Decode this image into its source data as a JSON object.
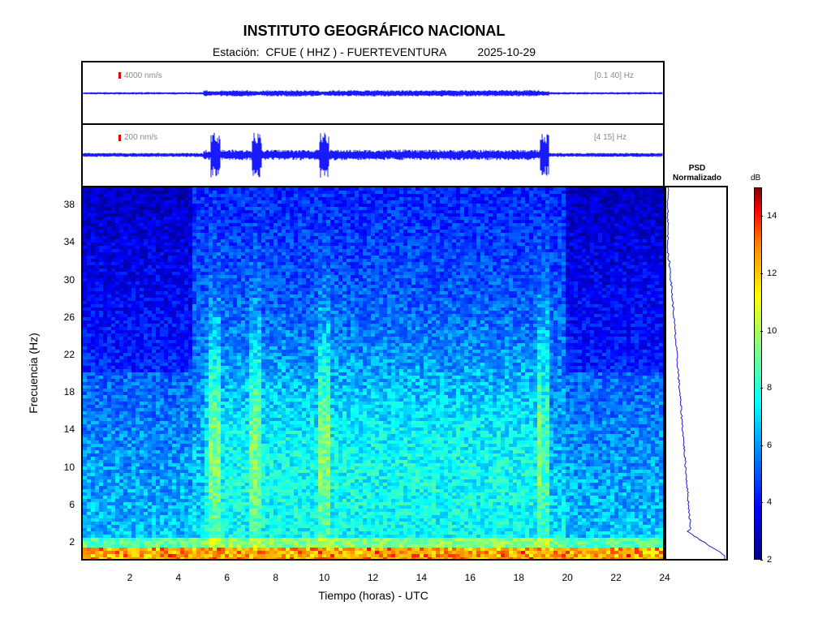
{
  "header": {
    "title": "INSTITUTO GEOGRÁFICO NACIONAL",
    "subtitle": "Estación:  CFUE ( HHZ ) - FUERTEVENTURA          2025-10-29"
  },
  "trace_top": {
    "scale_label": "4000 nm/s",
    "band_label": "[0.1 40] Hz"
  },
  "trace_bottom": {
    "scale_label": "200 nm/s",
    "band_label": "[4 15] Hz"
  },
  "psd": {
    "title_line1": "PSD",
    "title_line2": "Normalizado"
  },
  "colorbar": {
    "unit": "dB",
    "ticks": [
      "2",
      "4",
      "6",
      "8",
      "10",
      "12",
      "14"
    ],
    "colormap": [
      "#00008f",
      "#0000ff",
      "#00ffff",
      "#ffff00",
      "#ff0000",
      "#800000"
    ]
  },
  "colors": {
    "trace": "#1a1aff",
    "scale_marker": "#e00000",
    "psd_line": "#1a1acc"
  },
  "chart_data": {
    "type": "heatmap",
    "title": "INSTITUTO GEOGRÁFICO NACIONAL",
    "xlabel": "Tiempo (horas) - UTC",
    "ylabel": "Frecuencia  (Hz)",
    "xlim": [
      0,
      24
    ],
    "ylim": [
      0,
      40
    ],
    "x_ticks": [
      "2",
      "4",
      "6",
      "8",
      "10",
      "12",
      "14",
      "16",
      "18",
      "20",
      "22",
      "24"
    ],
    "y_ticks": [
      "2",
      "6",
      "10",
      "14",
      "18",
      "22",
      "26",
      "30",
      "34",
      "38"
    ],
    "color_range_db": [
      2,
      15
    ],
    "energy_bursts_hours": [
      5.5,
      7.2,
      10.0,
      19.1
    ]
  }
}
